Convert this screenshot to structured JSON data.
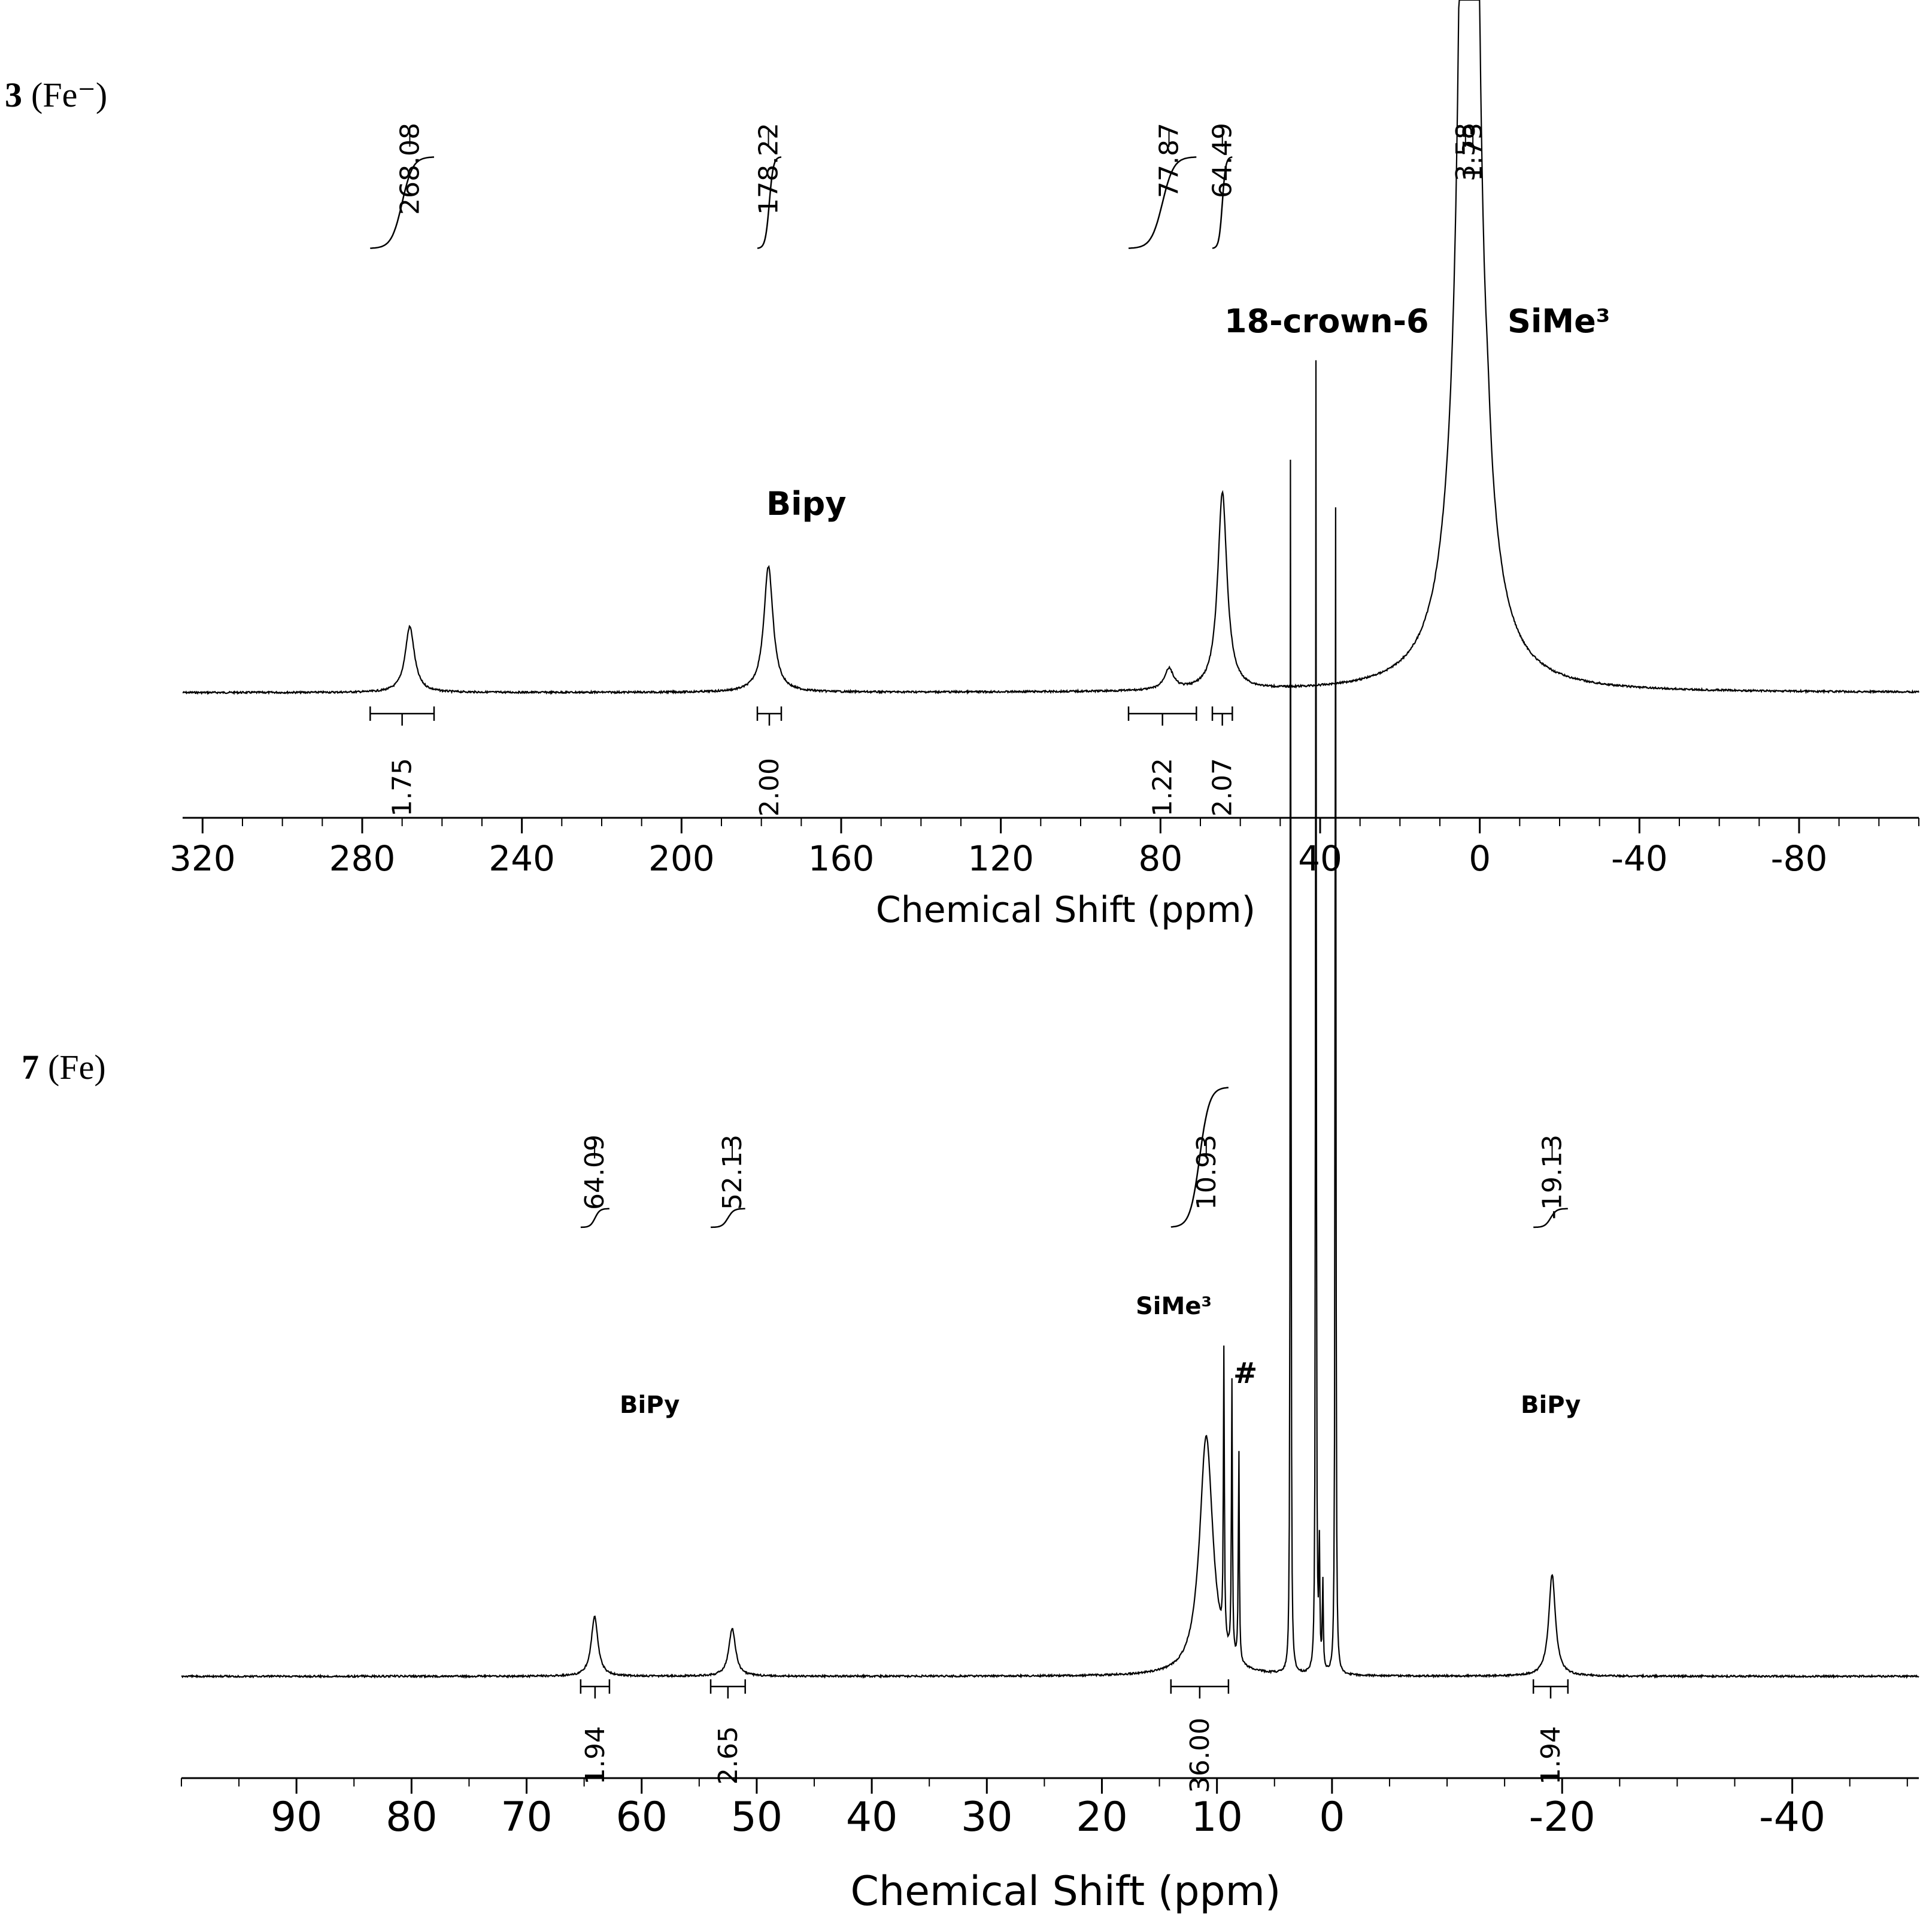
{
  "chart_data": [
    {
      "type": "line",
      "panel_label": "3",
      "panel_sublabel": "(Fe⁻)",
      "xlabel": "Chemical Shift (ppm)",
      "xlim": [
        325,
        -110
      ],
      "x_ticks": [
        "320",
        "280",
        "240",
        "200",
        "160",
        "120",
        "80",
        "40",
        "0",
        "-40",
        "-80"
      ],
      "x_tick_values": [
        320,
        280,
        240,
        200,
        160,
        120,
        80,
        40,
        0,
        -40,
        -80
      ],
      "peaks": [
        {
          "shift": 268.08,
          "label": "268.08",
          "height": 0.11
        },
        {
          "shift": 178.22,
          "label": "178.22",
          "height": 0.21
        },
        {
          "shift": 77.87,
          "label": "77.87",
          "height": 0.035
        },
        {
          "shift": 64.49,
          "label": "64.49",
          "height": 0.33
        },
        {
          "shift": 3.58,
          "label": "3.58",
          "height": 1.6
        },
        {
          "shift": 1.73,
          "label": "1.73",
          "height": 1.6
        }
      ],
      "integrals": [
        {
          "from": 278,
          "to": 262,
          "value": "1.75"
        },
        {
          "from": 181,
          "to": 175,
          "value": "2.00"
        },
        {
          "from": 88,
          "to": 71,
          "value": "1.22"
        },
        {
          "from": 67,
          "to": 62,
          "value": "2.07"
        }
      ],
      "annotations": [
        "Bipy",
        "18-crown-6",
        "SiMe³"
      ]
    },
    {
      "type": "line",
      "panel_label": "7",
      "panel_sublabel": "(Fe)",
      "xlabel": "Chemical Shift (ppm)",
      "xlim": [
        100,
        -51
      ],
      "x_ticks": [
        "90",
        "80",
        "70",
        "60",
        "50",
        "40",
        "30",
        "20",
        "10",
        "0",
        "-20",
        "-40"
      ],
      "x_tick_values": [
        90,
        80,
        70,
        60,
        50,
        40,
        30,
        20,
        10,
        0,
        -20,
        -40
      ],
      "peaks": [
        {
          "shift": 64.09,
          "label": "64.09",
          "height": 0.1
        },
        {
          "shift": 52.13,
          "label": "52.13",
          "height": 0.08
        },
        {
          "shift": 10.93,
          "label": "10.93",
          "height": 0.4
        },
        {
          "shift": -19.13,
          "label": "-19.13",
          "height": 0.17
        }
      ],
      "integrals": [
        {
          "from": 65.3,
          "to": 62.8,
          "value": "1.94"
        },
        {
          "from": 54,
          "to": 51,
          "value": "2.65"
        },
        {
          "from": 14,
          "to": 9,
          "value": "36.00"
        },
        {
          "from": -17.5,
          "to": -20.5,
          "value": "1.94"
        }
      ],
      "annotations": [
        "SiMe³",
        "#",
        "BiPy",
        "BiPy"
      ]
    }
  ]
}
